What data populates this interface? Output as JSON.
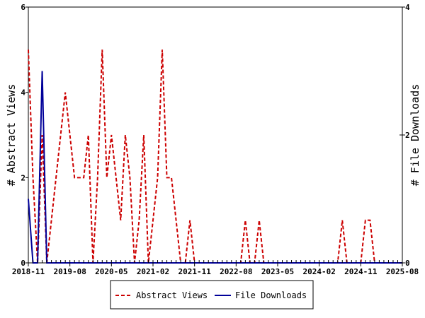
{
  "chart_data": {
    "type": "line",
    "title": "",
    "ylabel": "# Abstract Views",
    "y2label": "# File Downloads",
    "ylim": [
      0,
      6
    ],
    "y2lim": [
      0,
      4
    ],
    "yticks": [
      "0",
      "2",
      "4",
      "6"
    ],
    "y2ticks": [
      "0",
      "2",
      "4"
    ],
    "xlim": [
      "2018-11-01",
      "2025-08-01"
    ],
    "xticks": [
      "2018-11",
      "2019-08",
      "2020-05",
      "2021-02",
      "2021-11",
      "2022-08",
      "2023-05",
      "2024-02",
      "2024-11",
      "2025-08"
    ],
    "grid": false,
    "legend": "bottom",
    "series": [
      {
        "name": "Abstract Views",
        "axis": "left",
        "color": "#cc0000",
        "style": "dashed",
        "x": [
          "2018-11",
          "2018-12",
          "2019-01",
          "2019-02",
          "2019-03",
          "2019-04",
          "2019-05",
          "2019-06",
          "2019-07",
          "2019-08",
          "2019-09",
          "2019-10",
          "2019-11",
          "2019-12",
          "2020-01",
          "2020-02",
          "2020-03",
          "2020-04",
          "2020-05",
          "2020-06",
          "2020-07",
          "2020-08",
          "2020-09",
          "2020-10",
          "2020-11",
          "2020-12",
          "2021-01",
          "2021-02",
          "2021-03",
          "2021-04",
          "2021-05",
          "2021-06",
          "2021-07",
          "2021-08",
          "2021-09",
          "2021-10",
          "2021-11",
          "2021-12",
          "2022-01",
          "2022-02",
          "2022-03",
          "2022-04",
          "2022-05",
          "2022-06",
          "2022-07",
          "2022-08",
          "2022-09",
          "2022-10",
          "2022-11",
          "2022-12",
          "2023-01",
          "2023-02",
          "2023-03",
          "2023-04",
          "2023-05",
          "2023-06",
          "2023-07",
          "2023-08",
          "2023-09",
          "2023-10",
          "2023-11",
          "2023-12",
          "2024-01",
          "2024-02",
          "2024-03",
          "2024-04",
          "2024-05",
          "2024-06",
          "2024-07",
          "2024-08",
          "2024-09",
          "2024-10",
          "2024-11",
          "2024-12",
          "2025-01",
          "2025-02",
          "2025-03",
          "2025-04",
          "2025-05",
          "2025-06",
          "2025-07",
          "2025-08"
        ],
        "values": [
          5,
          2,
          0,
          3,
          0,
          1,
          2,
          3,
          4,
          3,
          2,
          2,
          2,
          3,
          0,
          2,
          5,
          2,
          3,
          2,
          1,
          3,
          2,
          0,
          1,
          3,
          0,
          1,
          2,
          5,
          2,
          2,
          1,
          0,
          0,
          1,
          0,
          0,
          0,
          0,
          0,
          0,
          0,
          0,
          0,
          0,
          0,
          1,
          0,
          0,
          1,
          0,
          0,
          0,
          0,
          0,
          0,
          0,
          0,
          0,
          0,
          0,
          0,
          0,
          0,
          0,
          0,
          0,
          1,
          0,
          0,
          0,
          0,
          1,
          1,
          0,
          0,
          0,
          0,
          0,
          0,
          0
        ]
      },
      {
        "name": "File Downloads",
        "axis": "right",
        "color": "#000099",
        "style": "solid",
        "x": [
          "2018-11",
          "2018-12",
          "2019-01",
          "2019-02",
          "2019-03",
          "2019-04",
          "2019-05",
          "2019-06",
          "2019-07",
          "2019-08",
          "2019-09",
          "2019-10",
          "2019-11",
          "2019-12",
          "2020-01",
          "2020-02",
          "2020-03",
          "2020-04",
          "2020-05",
          "2020-06",
          "2020-07",
          "2020-08",
          "2020-09",
          "2020-10",
          "2020-11",
          "2020-12",
          "2021-01",
          "2021-02",
          "2021-03",
          "2021-04",
          "2021-05",
          "2021-06",
          "2021-07",
          "2021-08",
          "2021-09",
          "2021-10",
          "2021-11",
          "2021-12",
          "2022-01",
          "2022-02",
          "2022-03",
          "2022-04",
          "2022-05",
          "2022-06",
          "2022-07",
          "2022-08",
          "2022-09",
          "2022-10",
          "2022-11",
          "2022-12",
          "2023-01",
          "2023-02",
          "2023-03",
          "2023-04",
          "2023-05",
          "2023-06",
          "2023-07",
          "2023-08",
          "2023-09",
          "2023-10",
          "2023-11",
          "2023-12",
          "2024-01",
          "2024-02",
          "2024-03",
          "2024-04",
          "2024-05",
          "2024-06",
          "2024-07",
          "2024-08",
          "2024-09",
          "2024-10",
          "2024-11",
          "2024-12",
          "2025-01",
          "2025-02",
          "2025-03",
          "2025-04",
          "2025-05",
          "2025-06",
          "2025-07",
          "2025-08"
        ],
        "values": [
          1,
          0,
          0,
          3,
          0,
          0,
          0,
          0,
          0,
          0,
          0,
          0,
          0,
          0,
          0,
          0,
          0,
          0,
          0,
          0,
          0,
          0,
          0,
          0,
          0,
          0,
          0,
          0,
          0,
          0,
          0,
          0,
          0,
          0,
          0,
          0,
          0,
          0,
          0,
          0,
          0,
          0,
          0,
          0,
          0,
          0,
          0,
          0,
          0,
          0,
          0,
          0,
          0,
          0,
          0,
          0,
          0,
          0,
          0,
          0,
          0,
          0,
          0,
          0,
          0,
          0,
          0,
          0,
          0,
          0,
          0,
          0,
          0,
          0,
          0,
          0,
          0,
          0,
          0,
          0,
          0,
          0
        ]
      }
    ]
  }
}
